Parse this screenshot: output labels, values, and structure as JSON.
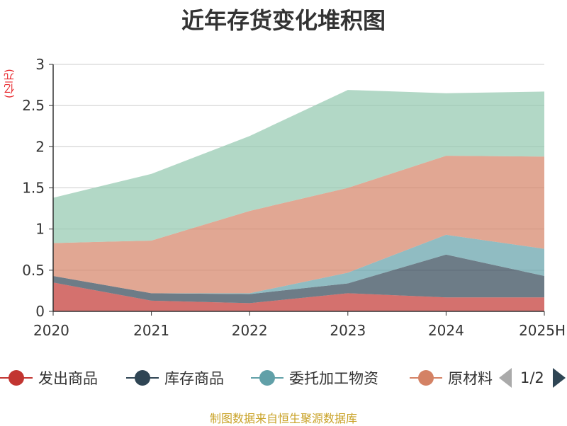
{
  "chart_data": {
    "type": "area",
    "stacked": true,
    "title": "近年存货变化堆积图",
    "ylabel": "(亿元)",
    "ylim": [
      0,
      3
    ],
    "yticks": [
      "0",
      "0.5",
      "1",
      "1.5",
      "2",
      "2.5",
      "3"
    ],
    "categories": [
      "2020",
      "2021",
      "2022",
      "2023",
      "2024",
      "2025H"
    ],
    "grid": true,
    "legend_position": "bottom",
    "series": [
      {
        "name": "发出商品",
        "color": "#c23531",
        "values": [
          0.35,
          0.13,
          0.1,
          0.22,
          0.17,
          0.17
        ]
      },
      {
        "name": "库存商品",
        "color": "#2f4554",
        "values": [
          0.08,
          0.09,
          0.11,
          0.12,
          0.52,
          0.26
        ]
      },
      {
        "name": "委托加工物资",
        "color": "#61a0a8",
        "values": [
          0.0,
          0.0,
          0.01,
          0.13,
          0.24,
          0.33
        ]
      },
      {
        "name": "原材料",
        "color": "#d48265",
        "values": [
          0.4,
          0.64,
          1.0,
          1.03,
          0.96,
          1.12
        ]
      },
      {
        "name": "",
        "color": "#91c7ae",
        "values": [
          0.55,
          0.81,
          0.91,
          1.19,
          0.76,
          0.79
        ]
      }
    ]
  },
  "legend": {
    "items": [
      "发出商品",
      "库存商品",
      "委托加工物资",
      "原材料"
    ],
    "page": "1/2"
  },
  "source": "制图数据来自恒生聚源数据库"
}
